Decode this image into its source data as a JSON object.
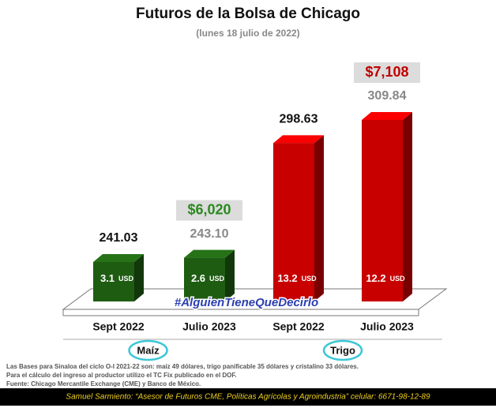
{
  "chart_data": {
    "type": "bar3d",
    "title": "Futuros de la Bolsa de Chicago",
    "subtitle": "(lunes 18 julio de 2022)",
    "unit": "USD",
    "hashtag": "#AlguienTieneQueDecirlo",
    "groups": [
      {
        "name": "Maíz",
        "color": "#1e5c12",
        "price_color": "#2a8a1e",
        "categories": [
          "Sept 2022",
          "Julio 2023"
        ],
        "values": [
          241.03,
          243.1
        ],
        "value_labels": [
          "241.03",
          "243.10"
        ],
        "bases": [
          3.1,
          2.6
        ],
        "price": {
          "value": 6020,
          "label": "$6,020"
        }
      },
      {
        "name": "Trigo",
        "color": "#c80000",
        "price_color": "#c00000",
        "categories": [
          "Sept 2022",
          "Julio 2023"
        ],
        "values": [
          298.63,
          309.84
        ],
        "value_labels": [
          "298.63",
          "309.84"
        ],
        "bases": [
          13.2,
          12.2
        ],
        "price": {
          "value": 7108,
          "label": "$7,108"
        }
      }
    ]
  },
  "notes": [
    "Las Bases para Sinaloa del ciclo O-I 2021-22 son: maíz 49 dólares, trigo panificable 35 dólares y cristalino 33 dólares.",
    "Para el cálculo del ingreso al productor utilizo el TC Fix publicado en el DOF.",
    "Fuente: Chicago Mercantile Exchange (CME) y Banco de México."
  ],
  "footer": "Samuel Sarmiento: “Asesor de Futuros CME, Políticas Agrícolas y Agroindustria”  celular: 6671-98-12-89"
}
